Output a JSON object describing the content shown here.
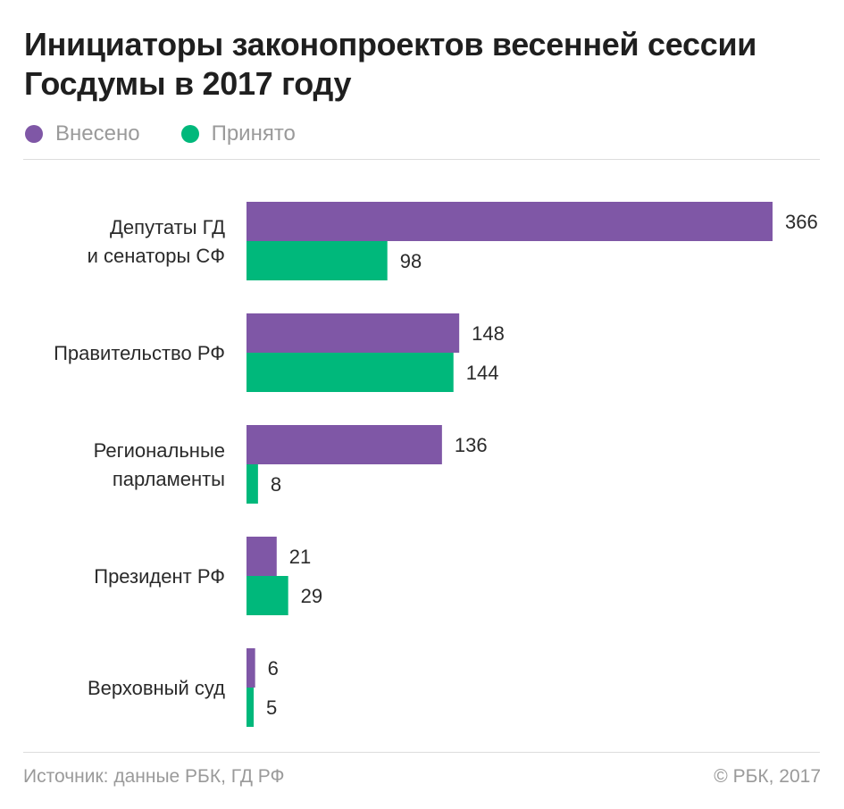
{
  "title": "Инициаторы законопроектов весенней сессии Госдумы в 2017 году",
  "legend": [
    {
      "label": "Внесено",
      "color": "#7f57a6"
    },
    {
      "label": "Принято",
      "color": "#00b87b"
    }
  ],
  "chart_data": {
    "type": "bar",
    "orientation": "horizontal",
    "title": "Инициаторы законопроектов весенней сессии Госдумы в 2017 году",
    "categories": [
      [
        "Депутаты ГД",
        "и сенаторы СФ"
      ],
      [
        "Правительство РФ"
      ],
      [
        "Региональные",
        "парламенты"
      ],
      [
        "Президент РФ"
      ],
      [
        "Верховный суд"
      ]
    ],
    "series": [
      {
        "name": "Внесено",
        "color": "#7f57a6",
        "values": [
          366,
          148,
          136,
          21,
          6
        ]
      },
      {
        "name": "Принято",
        "color": "#00b87b",
        "values": [
          98,
          144,
          8,
          29,
          5
        ]
      }
    ],
    "xlim": [
      0,
      366
    ],
    "grid": false,
    "legend_position": "top-left",
    "data_labels": true
  },
  "footer": {
    "source": "Источник: данные РБК, ГД РФ",
    "copyright": "© РБК, 2017"
  }
}
